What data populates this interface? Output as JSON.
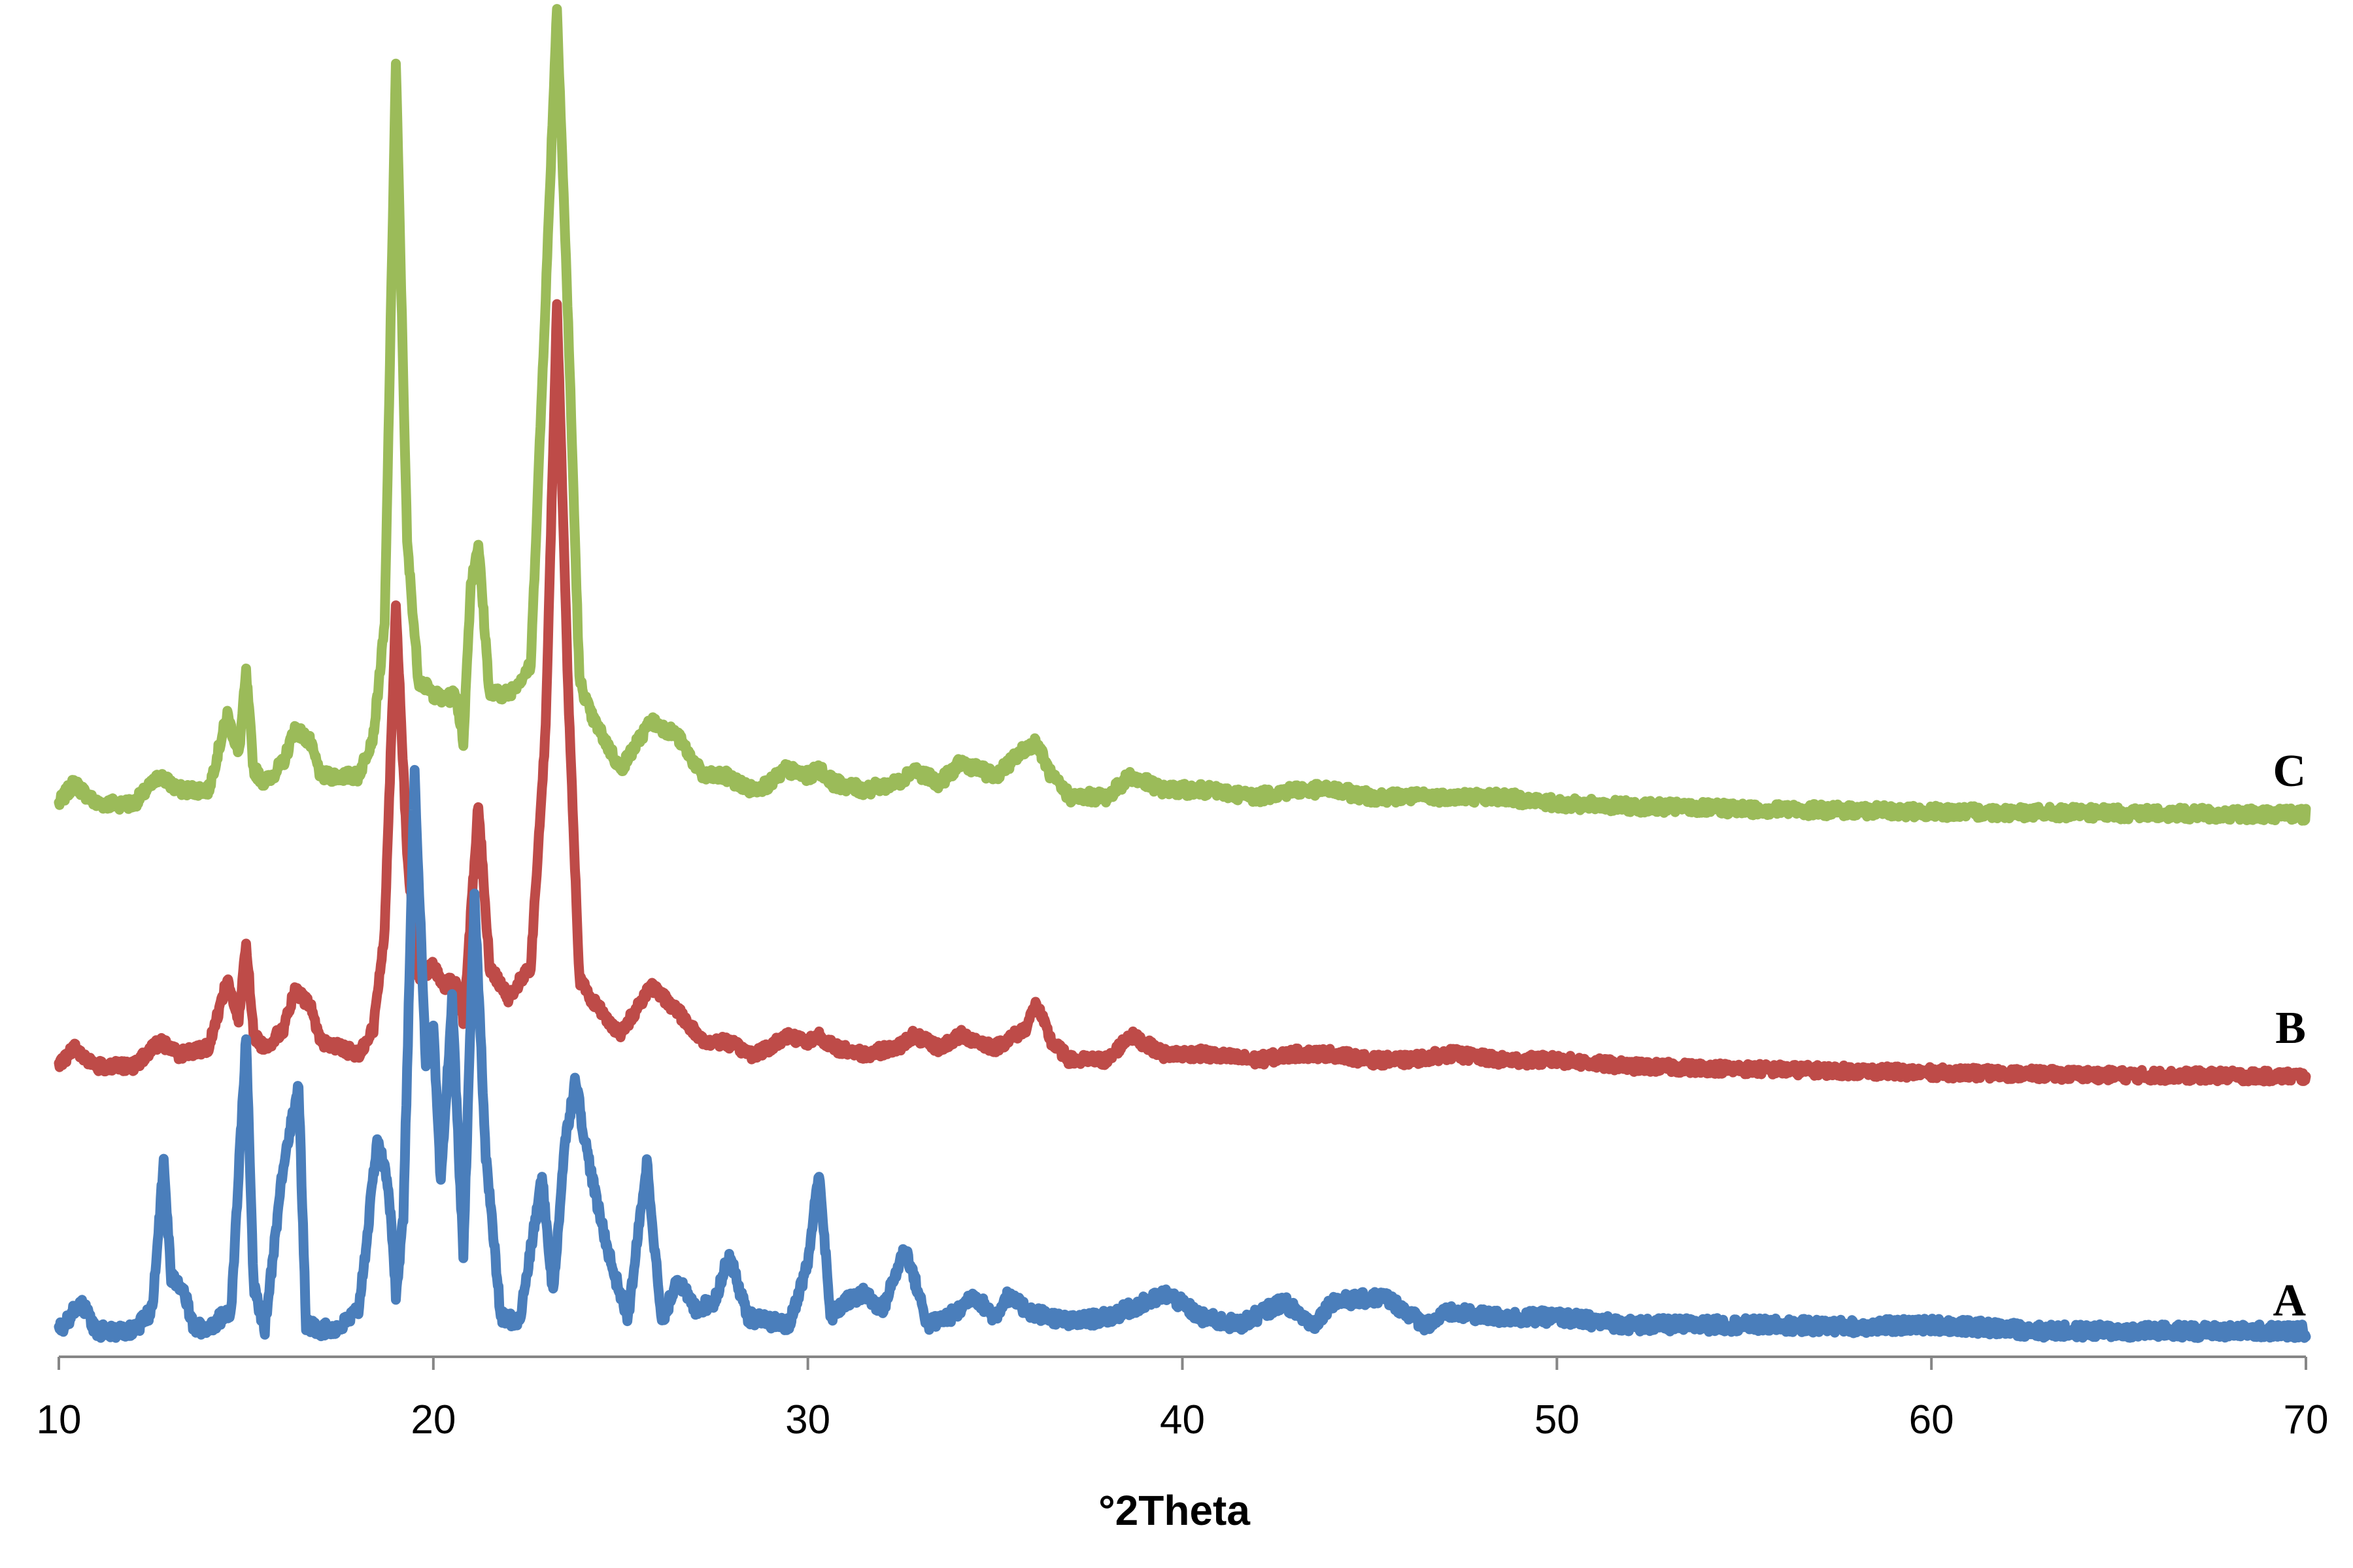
{
  "chart_data": {
    "type": "line",
    "title": "",
    "xlabel": "°2Theta",
    "ylabel": "",
    "xlim": [
      10,
      70
    ],
    "x_ticks": [
      "10",
      "20",
      "30",
      "40",
      "50",
      "60",
      "70"
    ],
    "y_ticks_visible": false,
    "grid": false,
    "legend": "none (series labeled at right end)",
    "series": [
      {
        "name": "A",
        "color": "#4a7ebb",
        "x": [
          10,
          10.6,
          11,
          12,
          12.5,
          12.8,
          13.0,
          13.3,
          13.6,
          14,
          14.6,
          15.0,
          15.2,
          15.5,
          16.0,
          16.4,
          16.6,
          17.0,
          17.5,
          18,
          18.2,
          18.5,
          18.8,
          19.0,
          19.2,
          19.5,
          19.8,
          20.0,
          20.2,
          20.5,
          20.8,
          21.1,
          21.4,
          21.8,
          22.3,
          22.9,
          23.2,
          23.5,
          23.8,
          24.0,
          24.4,
          24.8,
          25.2,
          25.7,
          26.1,
          26.5,
          27.0,
          27.5,
          27.9,
          28.4,
          29,
          29.5,
          30.0,
          30.3,
          30.6,
          31,
          31.5,
          32,
          32.6,
          33.2,
          34,
          34.4,
          35,
          35.3,
          36,
          37,
          38,
          39.6,
          40.5,
          41.5,
          42.7,
          43.5,
          44,
          45.4,
          46.5,
          47.1,
          48.5,
          50,
          52,
          55,
          58,
          60.2,
          63,
          66,
          70
        ],
        "values": [
          0.6,
          2.5,
          0.6,
          0.6,
          2.0,
          11.5,
          4.0,
          3.5,
          0.8,
          0.8,
          2.0,
          19.5,
          3.5,
          0.8,
          11.5,
          16.5,
          1.0,
          0.7,
          0.8,
          2.0,
          6.0,
          13.0,
          10.0,
          3.0,
          8.0,
          36.5,
          18.0,
          20.0,
          10.0,
          22.0,
          5.5,
          28.5,
          12.0,
          1.5,
          1.2,
          10.5,
          3.0,
          12.5,
          17.0,
          13.5,
          8.5,
          4.5,
          1.5,
          11.5,
          1.0,
          4.0,
          2.0,
          2.5,
          5.5,
          1.5,
          1.2,
          1.0,
          5.0,
          11.0,
          1.5,
          2.5,
          3.0,
          2.0,
          6.0,
          1.0,
          1.8,
          3.0,
          1.5,
          2.8,
          1.8,
          1.2,
          1.5,
          3.0,
          1.5,
          1.0,
          2.5,
          1.0,
          2.5,
          2.8,
          1.0,
          1.8,
          1.5,
          1.5,
          1.0,
          1.0,
          0.9,
          1.0,
          0.6,
          0.6,
          0.6
        ]
      },
      {
        "name": "B",
        "color": "#be4b48",
        "x": [
          10,
          10.4,
          11,
          12,
          12.7,
          13.2,
          14,
          14.5,
          14.8,
          15.0,
          15.2,
          15.5,
          16,
          16.3,
          16.7,
          17,
          17.5,
          18,
          18.4,
          18.7,
          19.0,
          19.3,
          19.6,
          20.0,
          20.3,
          20.6,
          20.8,
          21.0,
          21.2,
          21.5,
          22,
          22.6,
          23.0,
          23.3,
          23.6,
          23.9,
          24.2,
          25,
          25.8,
          26.5,
          27.2,
          27.8,
          28.5,
          29,
          29.4,
          30,
          30.3,
          30.7,
          31.5,
          32.4,
          32.8,
          33.5,
          34.1,
          35,
          35.8,
          36.1,
          36.5,
          37,
          38,
          38.6,
          39.5,
          40.5,
          42,
          43,
          44,
          45,
          46,
          47.2,
          48.5,
          50,
          52,
          55,
          60,
          65,
          70
        ],
        "values": [
          1.0,
          2.5,
          1.0,
          1.0,
          3.0,
          2.0,
          2.5,
          8.0,
          4.5,
          11.0,
          3.5,
          2.5,
          4.0,
          7.0,
          6.0,
          3.0,
          2.5,
          2.0,
          4.0,
          12.0,
          38.0,
          18.0,
          8.0,
          9.0,
          7.5,
          8.0,
          4.5,
          13.0,
          22.0,
          9.0,
          6.5,
          9.0,
          28.0,
          62.0,
          31.0,
          8.0,
          6.5,
          3.5,
          7.5,
          5.5,
          3.0,
          3.0,
          2.0,
          2.5,
          3.5,
          3.0,
          3.5,
          2.5,
          2.0,
          2.5,
          3.5,
          2.5,
          3.5,
          2.5,
          4.0,
          6.0,
          3.0,
          1.5,
          1.5,
          3.5,
          2.0,
          2.0,
          1.5,
          2.0,
          2.0,
          1.5,
          1.5,
          2.0,
          1.5,
          1.5,
          1.0,
          0.8,
          0.5,
          0.3,
          0.2
        ]
      },
      {
        "name": "C",
        "color": "#9bbb59",
        "x": [
          10,
          10.4,
          11,
          12,
          12.7,
          13.2,
          14,
          14.5,
          14.8,
          15.0,
          15.2,
          15.5,
          16,
          16.3,
          16.7,
          17,
          17.5,
          18,
          18.4,
          18.7,
          19.0,
          19.3,
          19.6,
          20.0,
          20.3,
          20.6,
          20.8,
          21.0,
          21.2,
          21.5,
          22,
          22.6,
          23.0,
          23.3,
          23.6,
          23.9,
          24.2,
          25,
          25.8,
          26.5,
          27.2,
          27.8,
          28.5,
          29,
          29.4,
          30,
          30.3,
          30.7,
          31.5,
          32.4,
          32.8,
          33.5,
          34.1,
          35,
          35.8,
          36.1,
          36.5,
          37,
          38,
          38.6,
          39.5,
          40.5,
          42,
          43,
          44,
          45,
          46,
          47.2,
          48.5,
          50,
          52,
          55,
          60,
          65,
          70
        ],
        "values": [
          1.0,
          2.5,
          1.0,
          1.0,
          3.0,
          2.0,
          2.0,
          7.5,
          4.5,
          10.5,
          3.5,
          2.5,
          4.0,
          6.5,
          5.5,
          3.0,
          3.0,
          3.0,
          6.0,
          14.0,
          55.0,
          20.0,
          10.0,
          9.0,
          8.5,
          9.0,
          5.5,
          17.0,
          20.0,
          9.0,
          9.0,
          11.0,
          38.0,
          59.0,
          36.0,
          10.0,
          7.5,
          3.5,
          7.0,
          6.0,
          3.0,
          3.0,
          2.0,
          2.5,
          3.5,
          3.0,
          3.5,
          2.5,
          2.0,
          2.5,
          3.5,
          2.5,
          4.0,
          3.0,
          5.0,
          5.5,
          3.0,
          1.5,
          1.5,
          3.0,
          2.0,
          2.0,
          1.5,
          2.0,
          2.0,
          1.5,
          1.5,
          1.5,
          1.5,
          1.0,
          0.8,
          0.6,
          0.4,
          0.3,
          0.2
        ]
      }
    ]
  }
}
